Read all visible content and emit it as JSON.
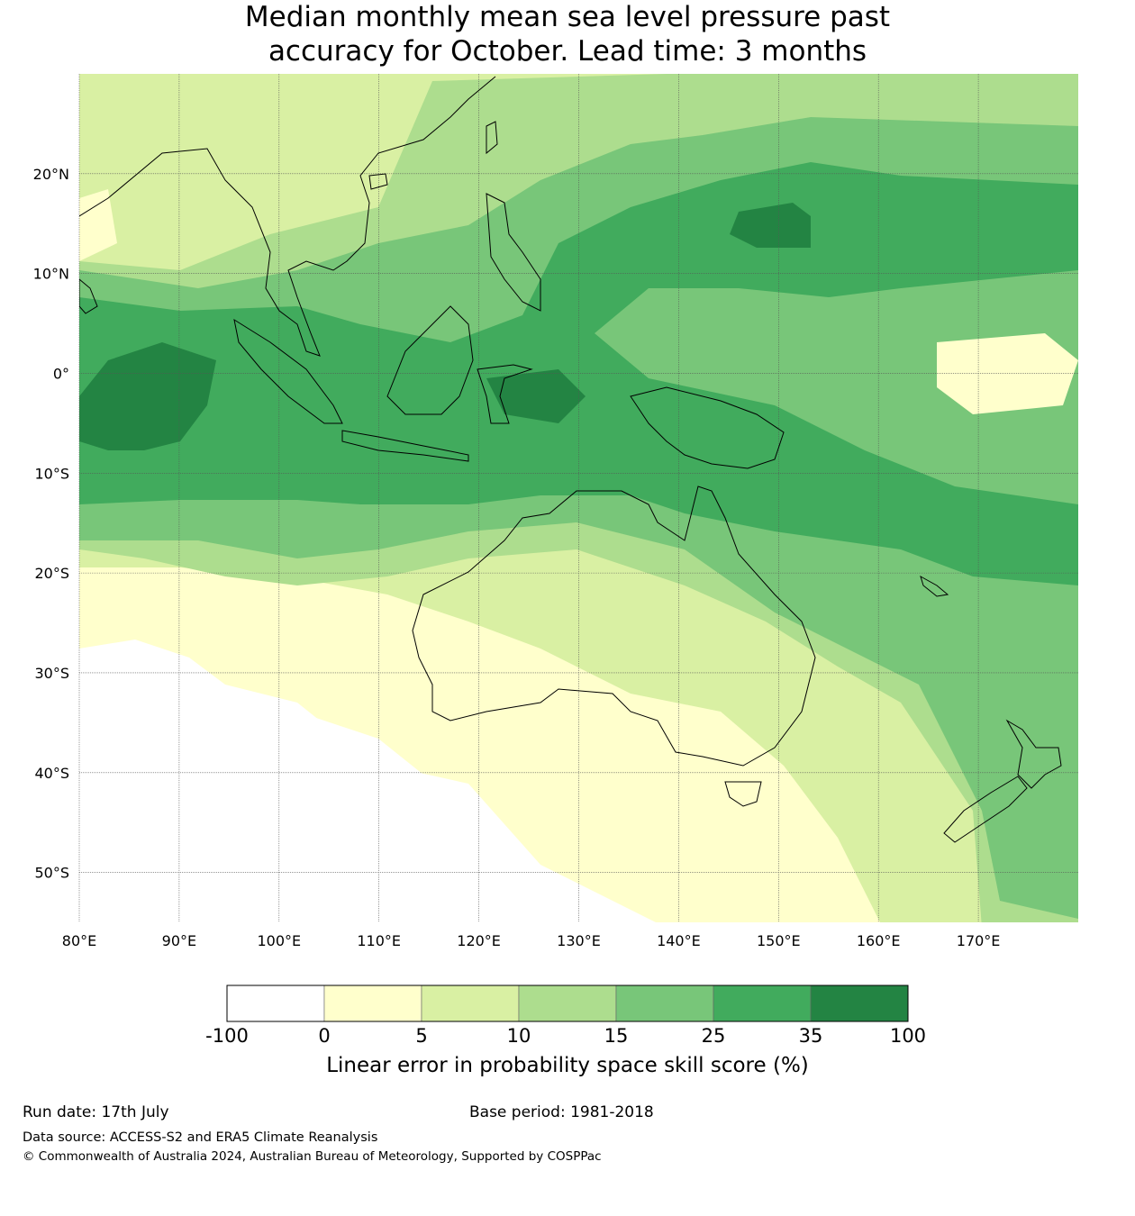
{
  "title": {
    "line1": "Median monthly mean sea level pressure past",
    "line2": "accuracy for October. Lead time: 3 months"
  },
  "map": {
    "lon_range": [
      80,
      180
    ],
    "lat_range": [
      -55,
      30
    ],
    "lon_ticks": [
      {
        "value": 80,
        "label": "80°E"
      },
      {
        "value": 90,
        "label": "90°E"
      },
      {
        "value": 100,
        "label": "100°E"
      },
      {
        "value": 110,
        "label": "110°E"
      },
      {
        "value": 120,
        "label": "120°E"
      },
      {
        "value": 130,
        "label": "130°E"
      },
      {
        "value": 140,
        "label": "140°E"
      },
      {
        "value": 150,
        "label": "150°E"
      },
      {
        "value": 160,
        "label": "160°E"
      },
      {
        "value": 170,
        "label": "170°E"
      }
    ],
    "lat_ticks": [
      {
        "value": 20,
        "label": "20°N"
      },
      {
        "value": 10,
        "label": "10°N"
      },
      {
        "value": 0,
        "label": "0°"
      },
      {
        "value": -10,
        "label": "10°S"
      },
      {
        "value": -20,
        "label": "20°S"
      },
      {
        "value": -30,
        "label": "30°S"
      },
      {
        "value": -40,
        "label": "40°S"
      },
      {
        "value": -50,
        "label": "50°S"
      }
    ],
    "grid": true
  },
  "colorbar": {
    "boundaries": [
      "-100",
      "0",
      "5",
      "10",
      "15",
      "25",
      "35",
      "100"
    ],
    "colors": [
      "#ffffff",
      "#ffffcc",
      "#d9f0a3",
      "#addd8e",
      "#78c679",
      "#41ab5d",
      "#238443"
    ],
    "label": "Linear error in probability space skill score (%)"
  },
  "footer": {
    "run_date": "Run date: 17th July",
    "base_period": "Base period: 1981-2018",
    "data_source": "Data source: ACCESS-S2 and ERA5 Climate Reanalysis",
    "copyright": "© Commonwealth of Australia 2024, Australian Bureau of Meteorology, Supported by COSPPac"
  }
}
